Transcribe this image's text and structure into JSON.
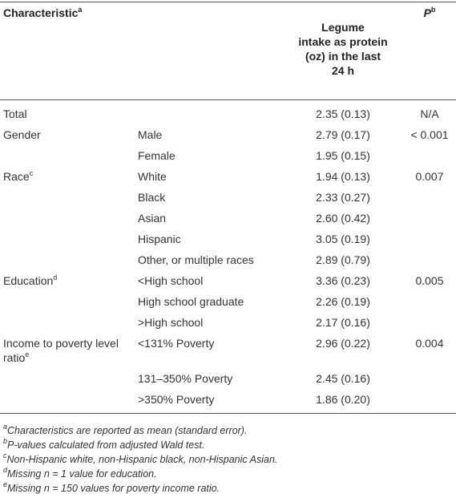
{
  "table": {
    "header": {
      "characteristic": {
        "text": "Characteristic",
        "sup": "a"
      },
      "intake": [
        "Legume",
        "intake as protein",
        "(oz) in the last",
        "24 h"
      ],
      "p": {
        "text": "P",
        "sup": "b"
      }
    },
    "rows": [
      {
        "characteristic": "Total",
        "value": "2.35 (0.13)",
        "p": "N/A"
      },
      {
        "characteristic": "Gender",
        "group": "Male",
        "value": "2.79 (0.17)",
        "p": "< 0.001"
      },
      {
        "group": "Female",
        "value": "1.95 (0.15)"
      },
      {
        "characteristic": "Race",
        "sup": "c",
        "group": "White",
        "value": "1.94 (0.13)",
        "p": "0.007"
      },
      {
        "group": "Black",
        "value": "2.33 (0.27)"
      },
      {
        "group": "Asian",
        "value": "2.60 (0.42)"
      },
      {
        "group": "Hispanic",
        "value": "3.05 (0.19)"
      },
      {
        "group": "Other, or multiple races",
        "value": "2.89 (0.79)"
      },
      {
        "characteristic": "Education",
        "sup": "d",
        "group": "<High school",
        "value": "3.36 (0.23)",
        "p": "0.005"
      },
      {
        "group": "High school graduate",
        "value": "2.26 (0.19)"
      },
      {
        "group": ">High school",
        "value": "2.17 (0.16)"
      },
      {
        "characteristic": "Income to poverty level ratio",
        "sup": "e",
        "group": "<131% Poverty",
        "value": "2.96 (0.22)",
        "p": "0.004"
      },
      {
        "group": "131–350% Poverty",
        "value": "2.45 (0.16)"
      },
      {
        "group": ">350% Poverty",
        "value": "1.86 (0.20)"
      }
    ]
  },
  "footnotes": [
    {
      "mark": "a",
      "text": "Characteristics are reported as mean (standard error)."
    },
    {
      "mark": "b",
      "text": "P-values calculated from adjusted Wald test."
    },
    {
      "mark": "c",
      "text": "Non-Hispanic white, non-Hispanic black, non-Hispanic Asian."
    },
    {
      "mark": "d",
      "text": "Missing n = 1 value for education."
    },
    {
      "mark": "e",
      "text": "Missing n = 150 values for poverty income ratio."
    }
  ]
}
